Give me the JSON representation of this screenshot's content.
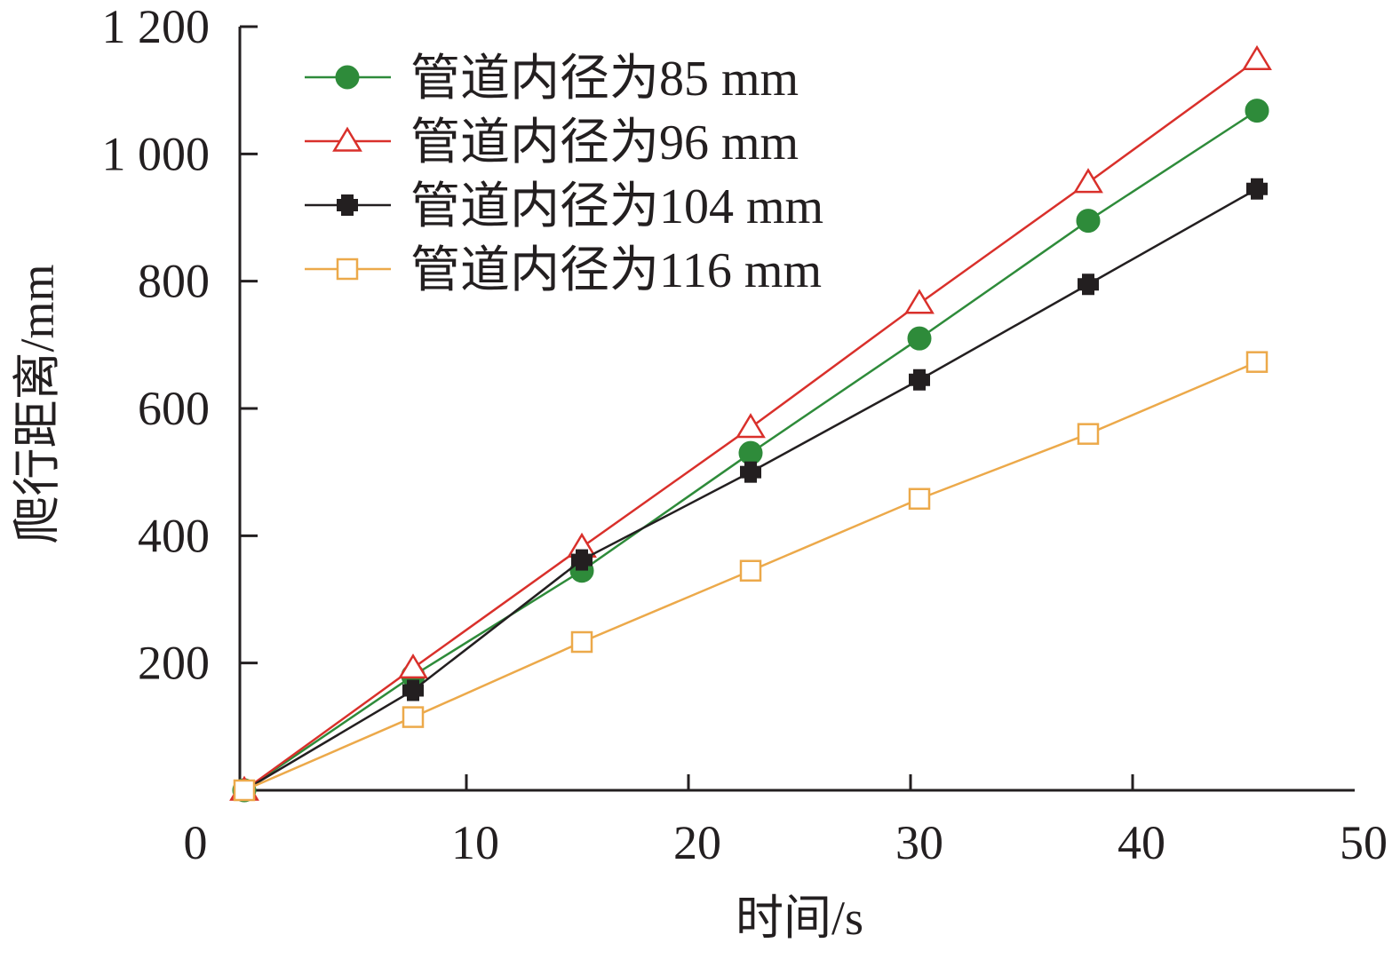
{
  "chart_data": {
    "type": "line",
    "xlabel": "时间/s",
    "ylabel": "爬行距离/mm",
    "xlim": [
      0,
      50
    ],
    "ylim": [
      0,
      1200
    ],
    "x_ticks": [
      "0",
      "10",
      "20",
      "30",
      "40",
      "50"
    ],
    "y_ticks": [
      "200",
      "400",
      "600",
      "800",
      "1 000",
      "1 200"
    ],
    "grid": false,
    "legend_position": "top-left",
    "x": [
      0,
      7.6,
      15.2,
      22.8,
      30.4,
      38.0,
      45.6
    ],
    "series": [
      {
        "name": "管道内径为85 mm",
        "color": "#2e8b3a",
        "marker": "filled-circle",
        "values": [
          0,
          180,
          345,
          530,
          710,
          895,
          1068
        ]
      },
      {
        "name": "管道内径为96 mm",
        "color": "#d9302b",
        "marker": "open-triangle",
        "values": [
          0,
          192,
          382,
          570,
          765,
          955,
          1148
        ]
      },
      {
        "name": "管道内径为104 mm",
        "color": "#231f20",
        "marker": "filled-cross",
        "values": [
          0,
          157,
          362,
          500,
          645,
          795,
          945
        ]
      },
      {
        "name": "管道内径为116 mm",
        "color": "#eca94a",
        "marker": "open-square",
        "values": [
          0,
          115,
          233,
          345,
          458,
          560,
          673
        ]
      }
    ]
  }
}
